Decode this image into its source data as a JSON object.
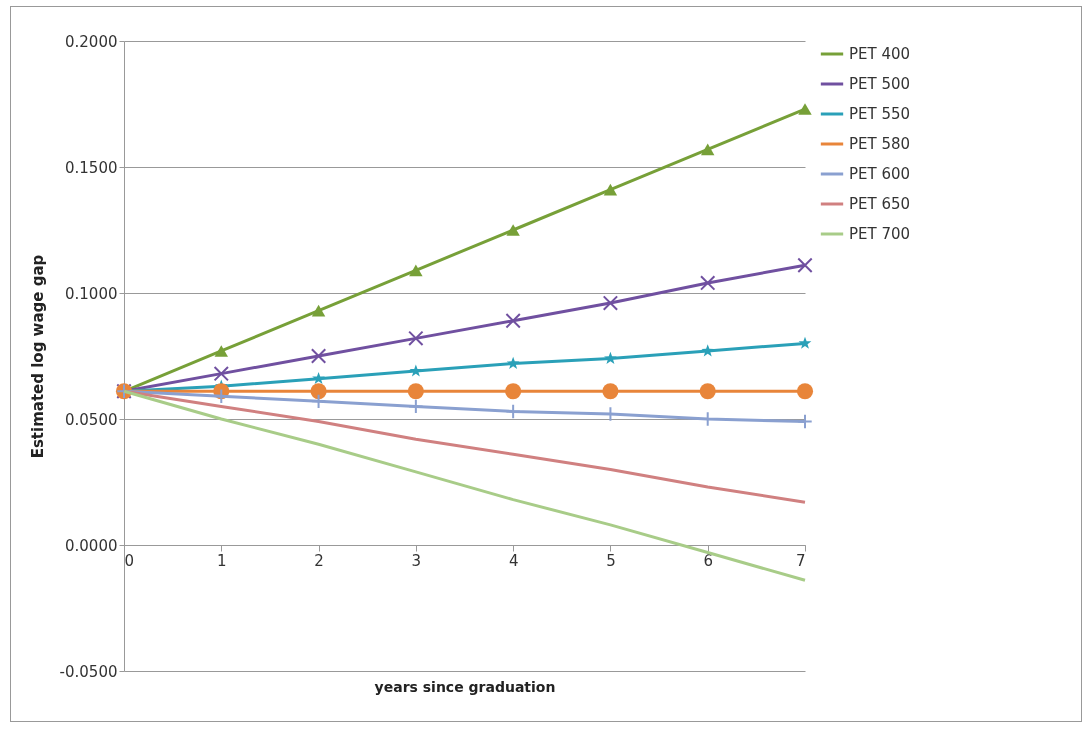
{
  "chart_data": {
    "type": "line",
    "xlabel": "years since graduation",
    "ylabel": "Estimated log wage gap",
    "x": [
      0,
      1,
      2,
      3,
      4,
      5,
      6,
      7
    ],
    "xlim": [
      0,
      7
    ],
    "xticks": [
      0,
      1,
      2,
      3,
      4,
      5,
      6,
      7
    ],
    "ylim": [
      -0.05,
      0.2
    ],
    "yticks": [
      {
        "value": -0.05,
        "label": "-0.0500"
      },
      {
        "value": 0,
        "label": "0.0000"
      },
      {
        "value": 0.05,
        "label": "0.0500"
      },
      {
        "value": 0.1,
        "label": "0.1000"
      },
      {
        "value": 0.15,
        "label": "0.1500"
      },
      {
        "value": 0.2,
        "label": "0.2000"
      }
    ],
    "grid": "y",
    "legend": "right",
    "series": [
      {
        "name": "PET 400",
        "color": "#77a038",
        "marker": "triangle",
        "values": [
          0.061,
          0.077,
          0.093,
          0.109,
          0.125,
          0.141,
          0.157,
          0.173
        ]
      },
      {
        "name": "PET 500",
        "color": "#7050a0",
        "marker": "x",
        "values": [
          0.061,
          0.068,
          0.075,
          0.082,
          0.089,
          0.096,
          0.104,
          0.111
        ]
      },
      {
        "name": "PET 550",
        "color": "#2aa0b8",
        "marker": "star",
        "values": [
          0.061,
          0.063,
          0.066,
          0.069,
          0.072,
          0.074,
          0.077,
          0.08
        ]
      },
      {
        "name": "PET 580",
        "color": "#e8853a",
        "marker": "circle",
        "values": [
          0.061,
          0.061,
          0.061,
          0.061,
          0.061,
          0.061,
          0.061,
          0.061
        ]
      },
      {
        "name": "PET 600",
        "color": "#8aa0d0",
        "marker": "cross",
        "values": [
          0.061,
          0.059,
          0.057,
          0.055,
          0.053,
          0.052,
          0.05,
          0.049
        ]
      },
      {
        "name": "PET 650",
        "color": "#d08080",
        "marker": "none",
        "values": [
          0.061,
          0.055,
          0.049,
          0.042,
          0.036,
          0.03,
          0.023,
          0.017
        ]
      },
      {
        "name": "PET 700",
        "color": "#a8cc88",
        "marker": "none",
        "values": [
          0.061,
          0.05,
          0.04,
          0.029,
          0.018,
          0.008,
          -0.003,
          -0.014
        ]
      }
    ]
  }
}
